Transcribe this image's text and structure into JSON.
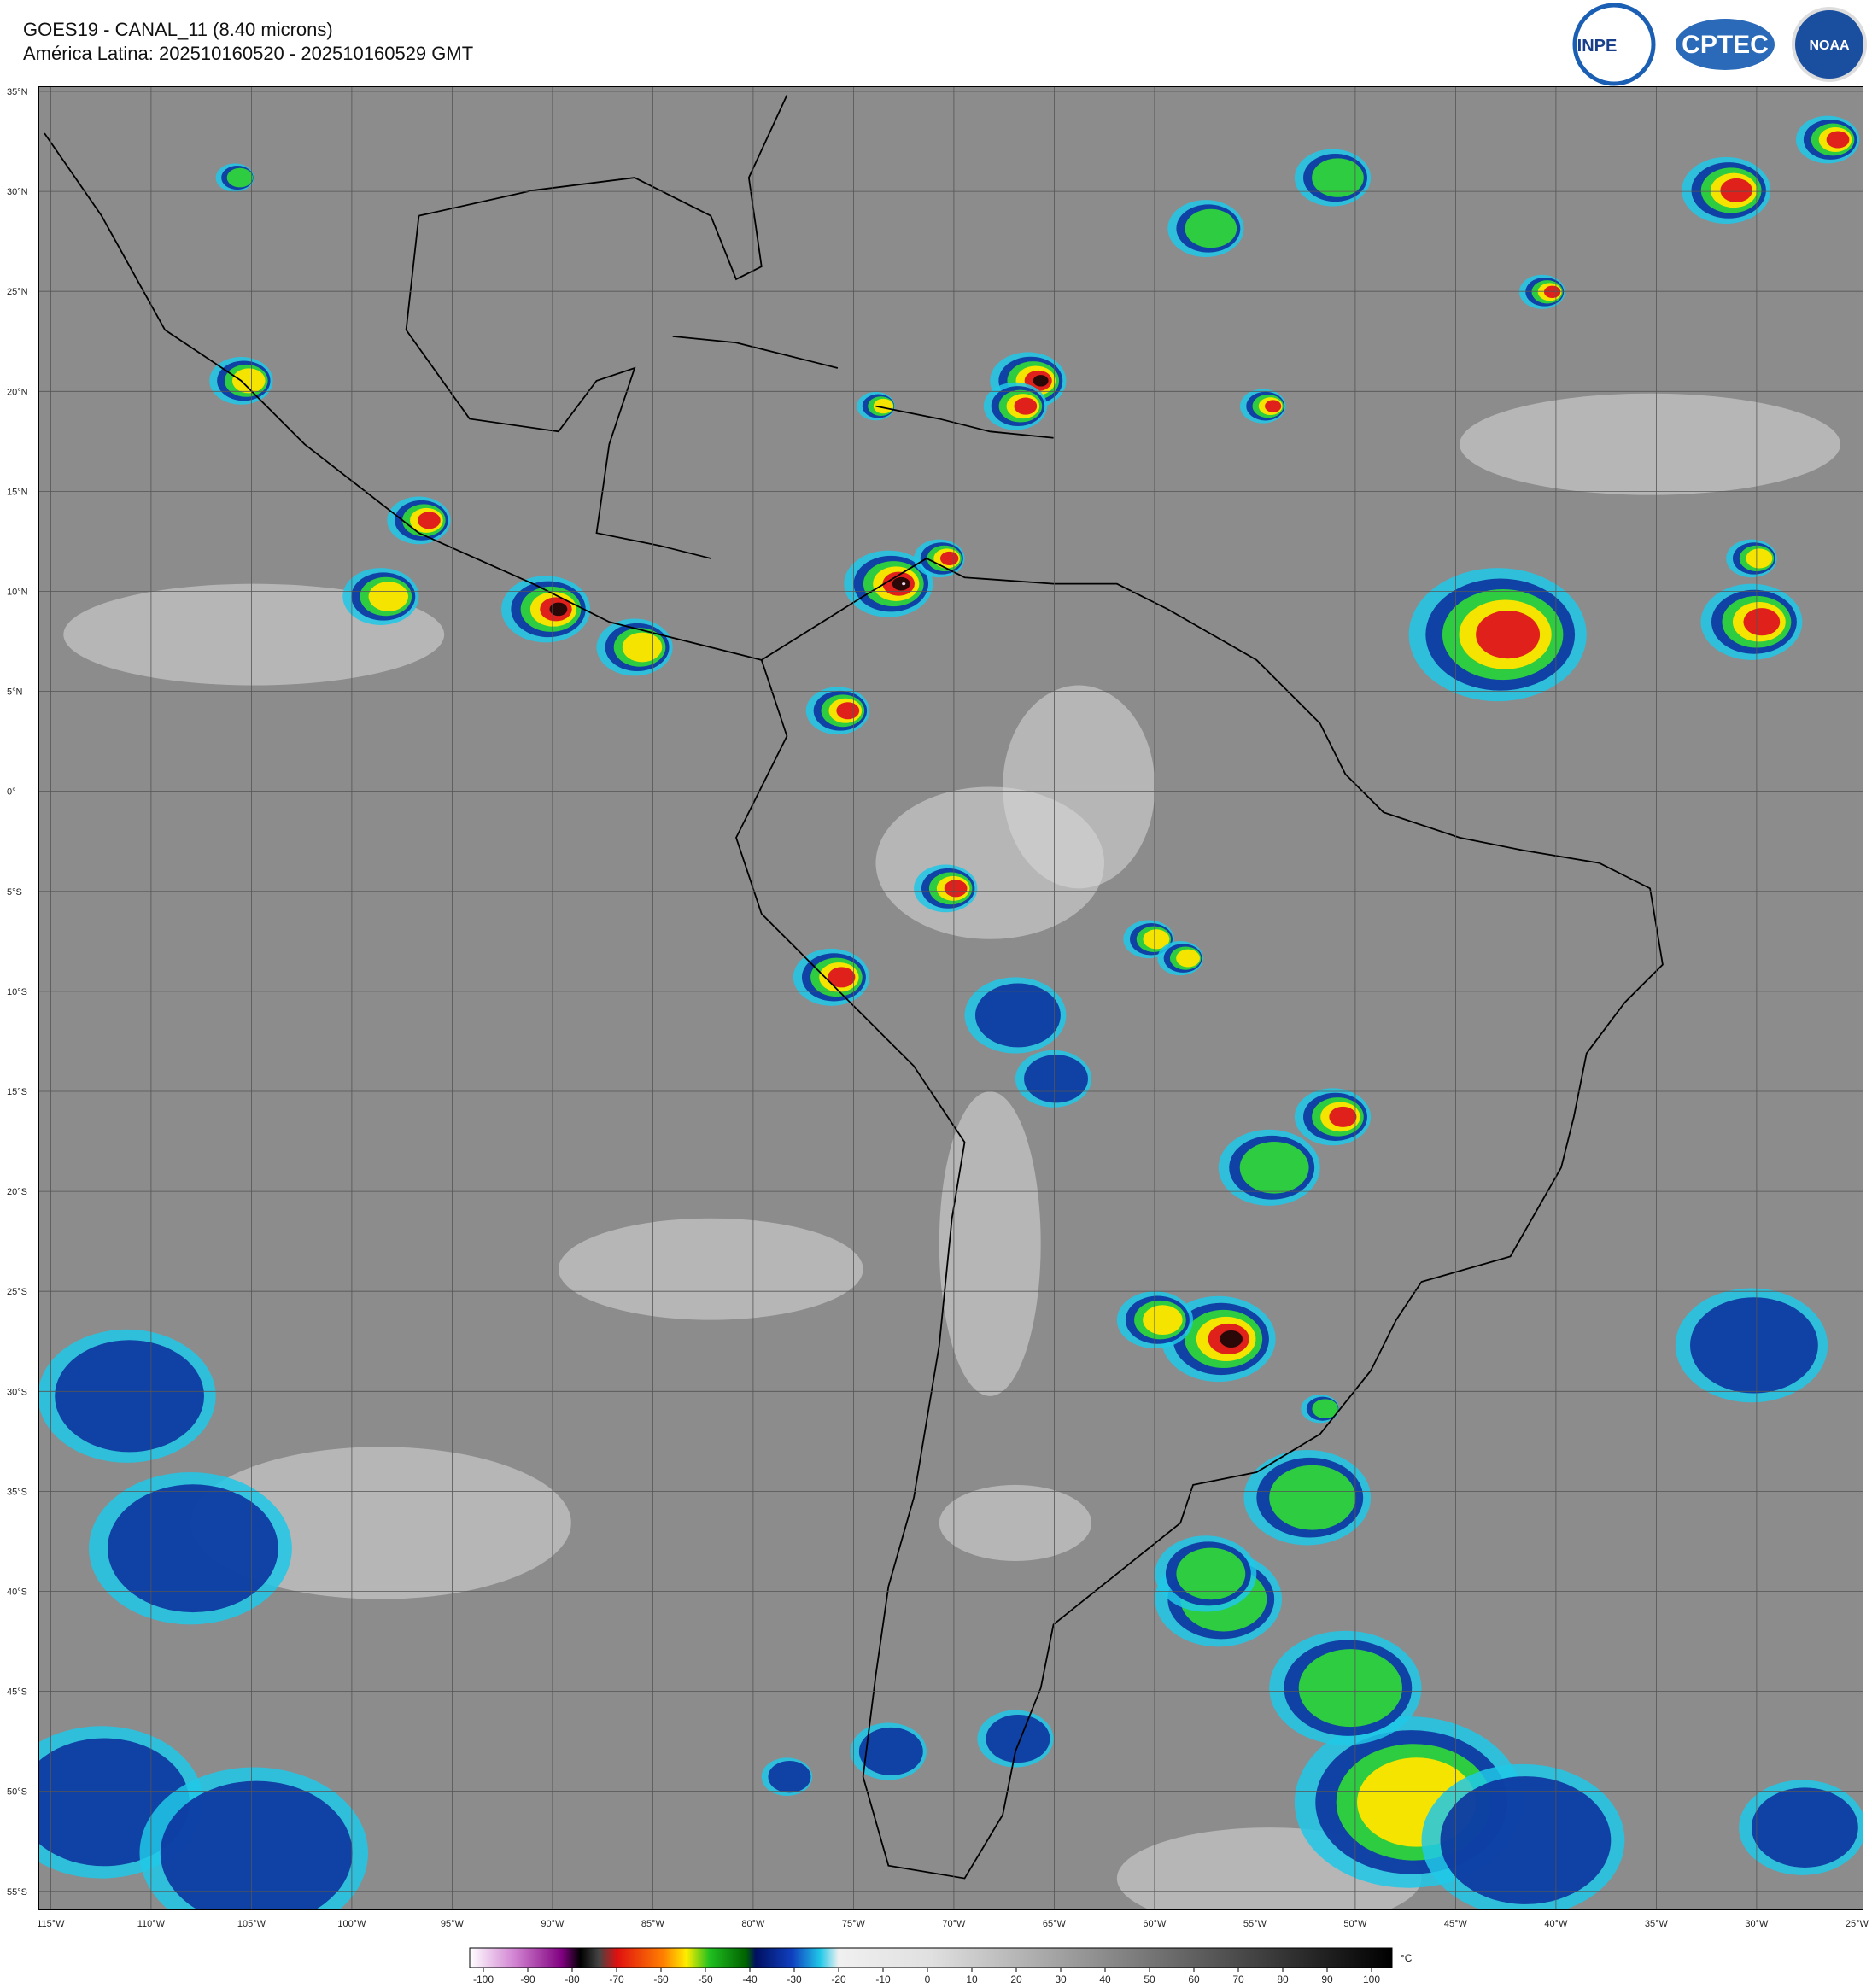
{
  "header": {
    "title": "GOES19 - CANAL_11 (8.40 microns)",
    "subtitle": "América Latina: 202510160520 - 202510160529 GMT"
  },
  "logos": [
    "INPE",
    "CPTEC",
    "NOAA"
  ],
  "latitude_labels": [
    "35°N",
    "30°N",
    "25°N",
    "20°N",
    "15°N",
    "10°N",
    "5°N",
    "0°",
    "5°S",
    "10°S",
    "15°S",
    "20°S",
    "25°S",
    "30°S",
    "35°S",
    "40°S",
    "45°S",
    "50°S",
    "55°S"
  ],
  "longitude_labels": [
    "115°W",
    "110°W",
    "105°W",
    "100°W",
    "95°W",
    "90°W",
    "85°W",
    "80°W",
    "75°W",
    "70°W",
    "65°W",
    "60°W",
    "55°W",
    "50°W",
    "45°W",
    "40°W",
    "35°W",
    "30°W",
    "25°W"
  ],
  "colorbar": {
    "ticks": [
      -100,
      -90,
      -80,
      -70,
      -60,
      -50,
      -40,
      -30,
      -20,
      -10,
      0,
      10,
      20,
      30,
      40,
      50,
      60,
      70,
      80,
      90,
      100
    ],
    "unit": "°C"
  }
}
